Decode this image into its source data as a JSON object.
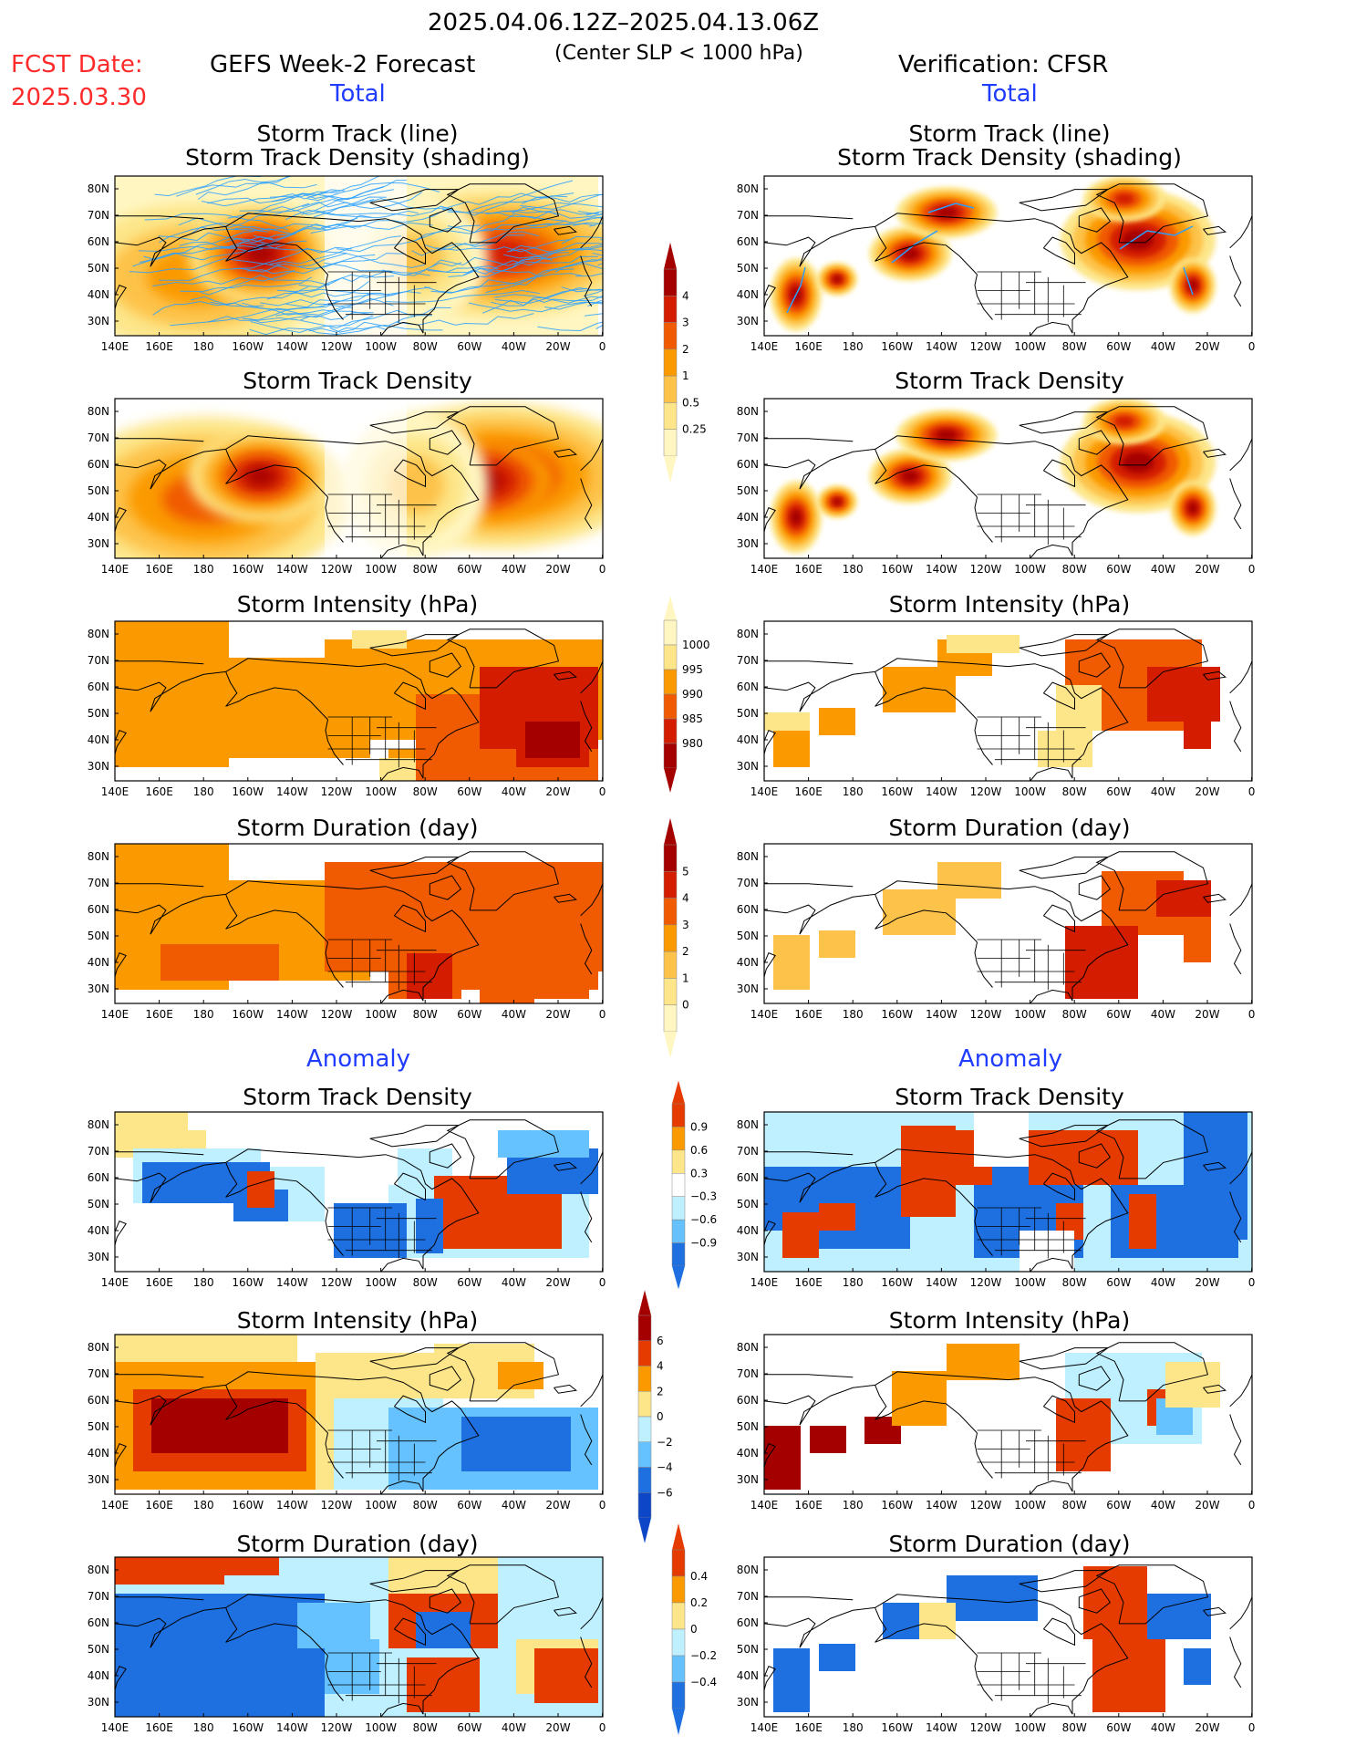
{
  "header": {
    "date_range": "2025.04.06.12Z–2025.04.13.06Z",
    "center_slp": "(Center SLP < 1000 hPa)",
    "fcst_label": "FCST Date:",
    "fcst_date": "2025.03.30",
    "left_title": "GEFS Week-2 Forecast",
    "right_title": "Verification: CFSR",
    "total": "Total",
    "anomaly": "Anomaly"
  },
  "panel_titles": {
    "track_line": "Storm Track (line)",
    "track_density_shading": "Storm Track Density (shading)",
    "track_density": "Storm Track Density",
    "intensity": "Storm Intensity (hPa)",
    "duration": "Storm Duration (day)"
  },
  "axes": {
    "lon_labels": [
      "140E",
      "160E",
      "180",
      "160W",
      "140W",
      "120W",
      "100W",
      "80W",
      "60W",
      "40W",
      "20W",
      "0"
    ],
    "lat_labels": [
      "80N",
      "70N",
      "60N",
      "50N",
      "40N",
      "30N"
    ]
  },
  "colorbars": {
    "total_density": {
      "labels": [
        "4",
        "3",
        "2",
        "1",
        "0.5",
        "0.25"
      ],
      "colors": [
        "#a50000",
        "#d31c00",
        "#f05a00",
        "#fb9a00",
        "#fdc24a",
        "#fde68a",
        "#fff6c2"
      ]
    },
    "total_intensity": {
      "labels": [
        "1000",
        "995",
        "990",
        "985",
        "980"
      ],
      "colors": [
        "#fff6c2",
        "#fde68a",
        "#fb9a00",
        "#f05a00",
        "#d31c00",
        "#a50000"
      ]
    },
    "total_duration": {
      "labels": [
        "5",
        "4",
        "3",
        "2",
        "1",
        "0"
      ],
      "colors": [
        "#a50000",
        "#d31c00",
        "#f05a00",
        "#fb9a00",
        "#fdc24a",
        "#fde68a",
        "#fff6c2"
      ]
    },
    "anom_density": {
      "labels": [
        "0.9",
        "0.6",
        "0.3",
        "−0.3",
        "−0.6",
        "−0.9"
      ],
      "colors": [
        "#e63b00",
        "#fb9a00",
        "#fde68a",
        "#ffffff",
        "#bff0ff",
        "#66c2ff",
        "#1e6fe0"
      ]
    },
    "anom_intensity": {
      "labels": [
        "6",
        "4",
        "2",
        "0",
        "−2",
        "−4",
        "−6"
      ],
      "colors": [
        "#a50000",
        "#e63b00",
        "#fb9a00",
        "#fde68a",
        "#bff0ff",
        "#66c2ff",
        "#1e6fe0",
        "#0d47c8"
      ]
    },
    "anom_duration": {
      "labels": [
        "0.4",
        "0.2",
        "0",
        "−0.2",
        "−0.4"
      ],
      "colors": [
        "#e63b00",
        "#fb9a00",
        "#fde68a",
        "#bff0ff",
        "#66c2ff",
        "#1e6fe0"
      ]
    }
  },
  "colors": {
    "track_line": "#2aa0ff",
    "coast": "#000000",
    "accent_red": "#ff2a2a",
    "accent_blue": "#1f3cff"
  }
}
